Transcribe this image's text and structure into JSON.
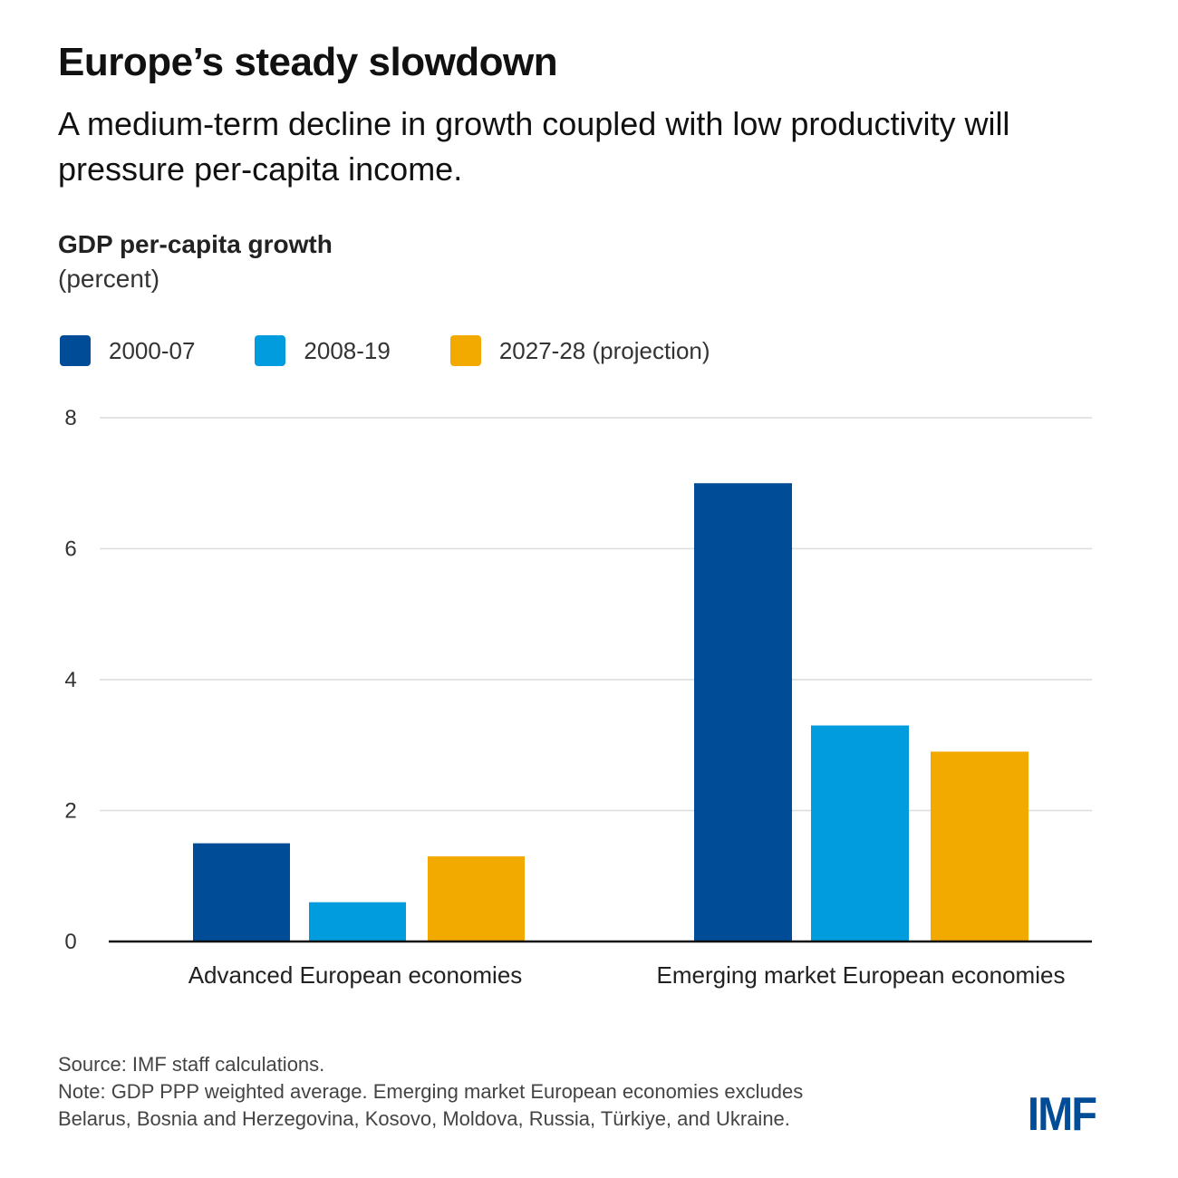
{
  "header": {
    "title": "Europe’s steady slowdown",
    "subtitle": "A medium-term decline in growth coupled with low productivity will pressure per-capita income."
  },
  "chart_data": {
    "type": "bar",
    "title": "GDP per-capita growth",
    "unit": "(percent)",
    "xlabel": "",
    "ylabel": "",
    "categories": [
      "Advanced European economies",
      "Emerging market European economies"
    ],
    "series": [
      {
        "name": "2000-07",
        "color": "#004c97",
        "values": [
          1.5,
          7.0
        ]
      },
      {
        "name": "2008-19",
        "color": "#009cde",
        "values": [
          0.6,
          3.3
        ]
      },
      {
        "name": "2027-28 (projection)",
        "color": "#f2a900",
        "values": [
          1.3,
          2.9
        ]
      }
    ],
    "ylim": [
      0,
      8
    ],
    "yticks": [
      0,
      2,
      4,
      6,
      8
    ],
    "grid": true,
    "legend_position": "top-left"
  },
  "footer": {
    "source": "Source: IMF staff calculations.",
    "note_line1": "Note: GDP PPP weighted average. Emerging market European economies excludes",
    "note_line2": "Belarus, Bosnia and Herzegovina, Kosovo, Moldova, Russia, Türkiye, and Ukraine."
  },
  "brand": {
    "logo_text": "IMF",
    "color": "#004c97"
  }
}
